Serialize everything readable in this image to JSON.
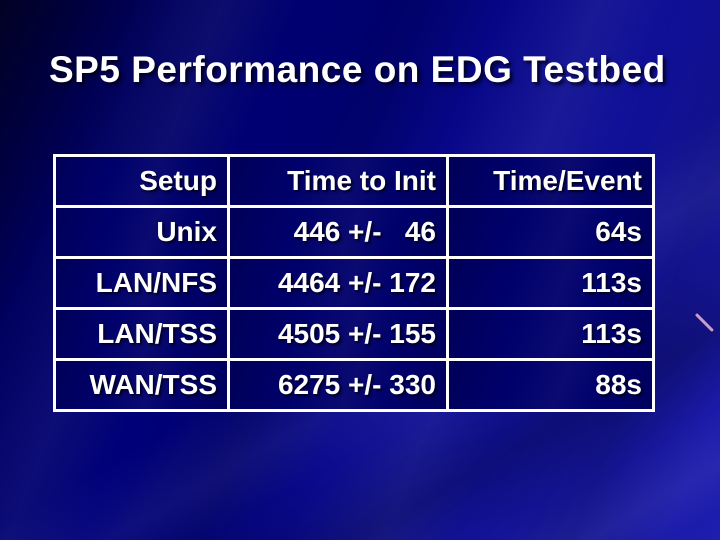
{
  "slide": {
    "title": "SP5 Performance on EDG Testbed"
  },
  "table": {
    "headers": [
      {
        "label": "Setup"
      },
      {
        "label": "Time to Init"
      },
      {
        "label": "Time/Event"
      }
    ],
    "rows": [
      {
        "setup": "Unix",
        "time_to_init": "446 +/-   46",
        "time_per_event": "64s"
      },
      {
        "setup": "LAN/NFS",
        "time_to_init": "4464 +/- 172",
        "time_per_event": "113s"
      },
      {
        "setup": "LAN/TSS",
        "time_to_init": "4505 +/- 155",
        "time_per_event": "113s"
      },
      {
        "setup": "WAN/TSS",
        "time_to_init": "6275 +/- 330",
        "time_per_event": "88s"
      }
    ]
  },
  "colors": {
    "background_dark": "#01012b",
    "background_mid": "#00007c",
    "background_bright": "#1d1dae",
    "table_cell_background": "#00006b",
    "table_border": "#ffffff",
    "text": "#ffffff",
    "accent_line": "#dcaed0"
  }
}
